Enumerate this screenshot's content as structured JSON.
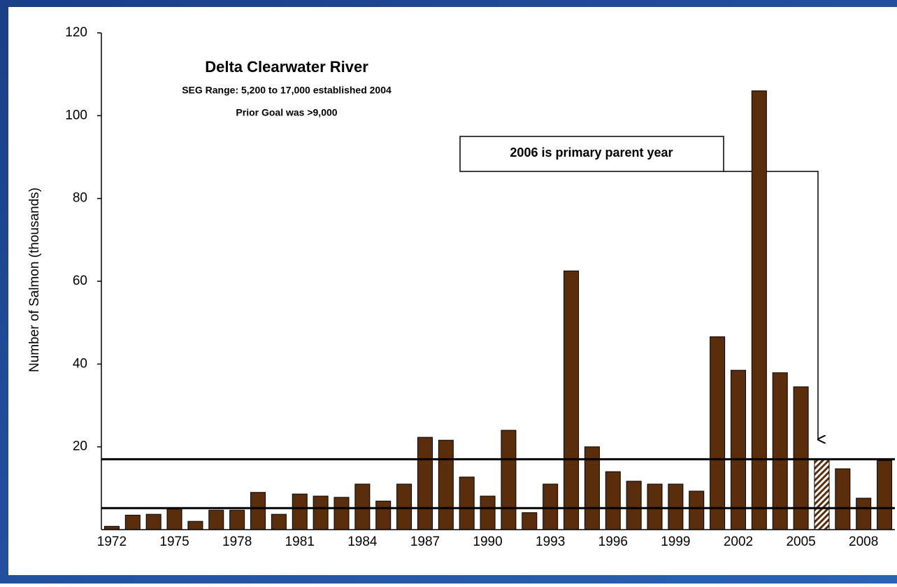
{
  "chart_data": {
    "type": "bar",
    "title": "Delta Clearwater River",
    "subtitle": [
      "SEG Range: 5,200 to 17,000 established 2004",
      "Prior Goal was >9,000"
    ],
    "annotation": "2006 is primary parent year",
    "ylabel": "Number of Salmon (thousands)",
    "categories": [
      "1972",
      null,
      null,
      "1975",
      null,
      null,
      "1978",
      null,
      null,
      "1981",
      null,
      null,
      "1984",
      null,
      null,
      "1987",
      null,
      null,
      "1990",
      null,
      null,
      "1993",
      null,
      null,
      "1996",
      null,
      null,
      "1999",
      null,
      null,
      "2002",
      null,
      null,
      "2005",
      null,
      null,
      "2008",
      null
    ],
    "values": [
      0.8,
      3.5,
      3.7,
      5,
      2,
      4.7,
      4.7,
      9,
      3.7,
      8.6,
      8.1,
      7.8,
      11,
      6.9,
      11,
      22.3,
      21.6,
      12.7,
      8.1,
      24,
      4.1,
      11,
      62.5,
      20,
      14,
      11.7,
      11,
      11,
      9.3,
      46.6,
      38.5,
      106,
      37.9,
      34.5,
      16.9,
      14.7,
      7.6,
      16.7
    ],
    "color": "#5a2e0c",
    "hatched_index": 34,
    "reference_lines": [
      5.2,
      17
    ],
    "ylim": [
      0,
      120
    ],
    "yticks": [
      20,
      40,
      60,
      80,
      100,
      120
    ]
  }
}
